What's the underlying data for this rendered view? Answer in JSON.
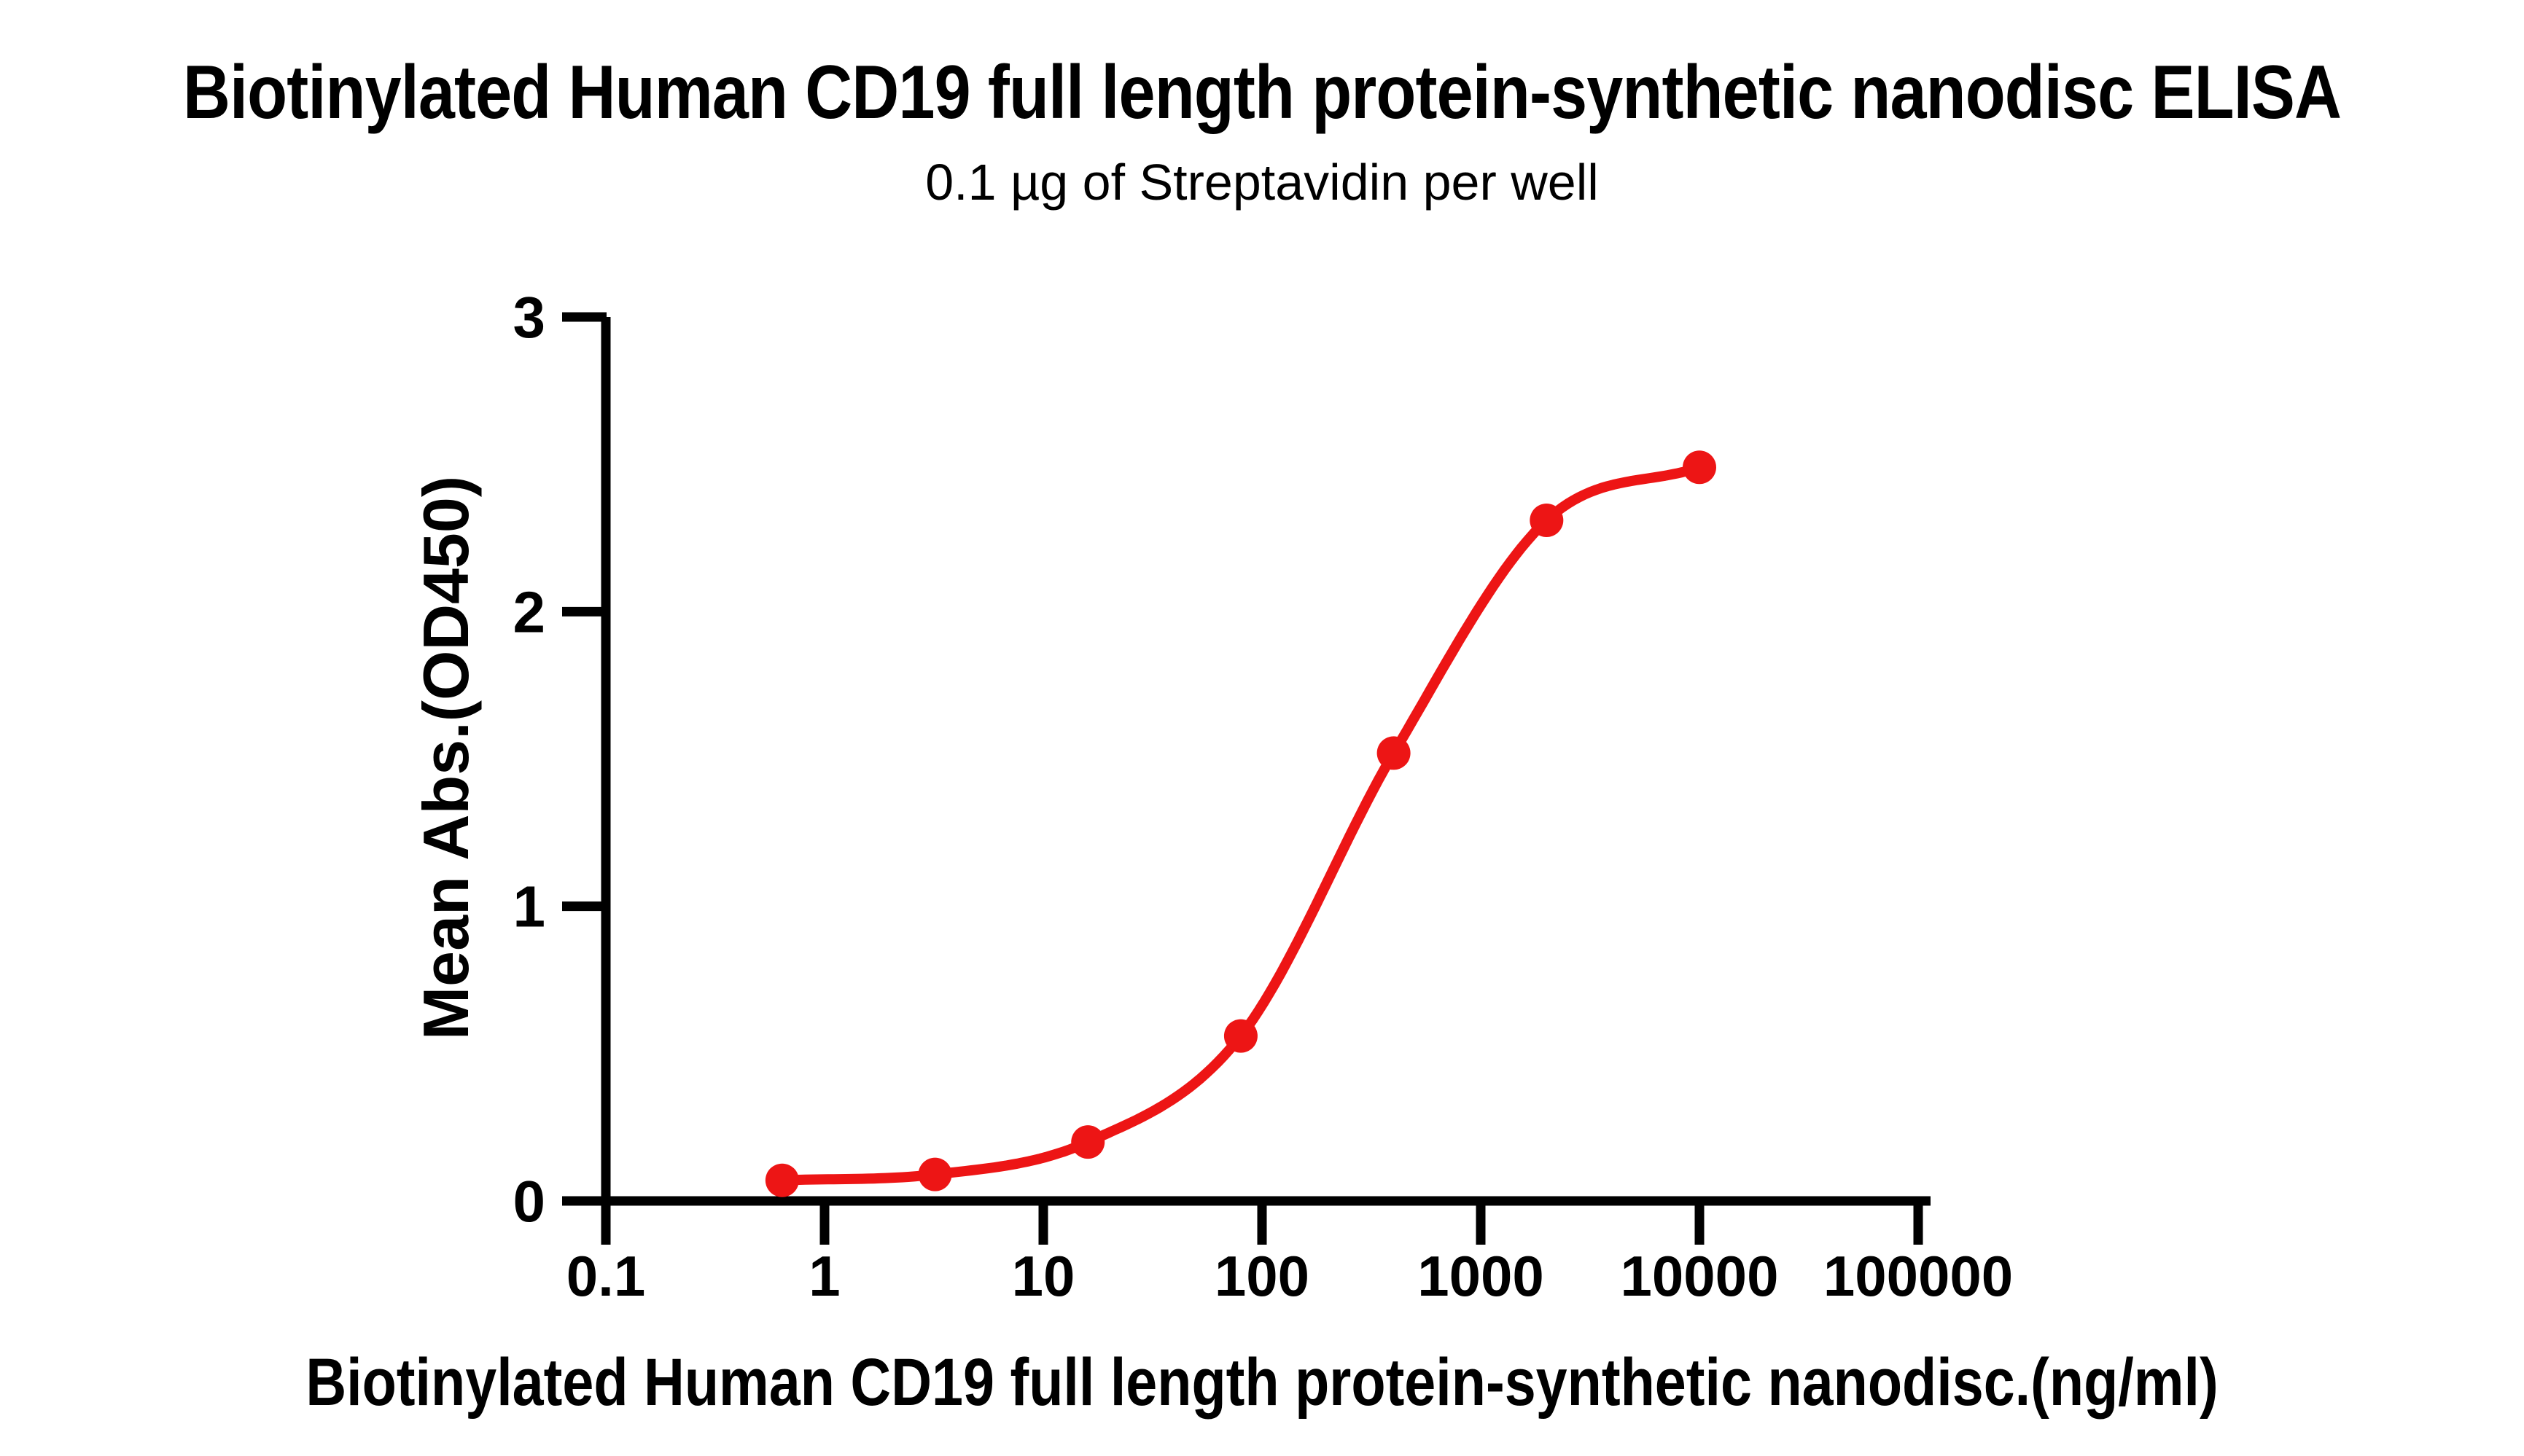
{
  "page": {
    "background": "#FFFFFF",
    "text_color": "#000000"
  },
  "header": {
    "title": "Biotinylated Human CD19 full length protein-synthetic nanodisc ELISA",
    "subtitle": "0.1 µg of Streptavidin per well"
  },
  "chart_data": {
    "type": "line",
    "title": "Biotinylated Human CD19 full length protein-synthetic nanodisc ELISA",
    "subtitle": "0.1 µg of Streptavidin per well",
    "xlabel": "Biotinylated Human CD19 full length protein-synthetic nanodisc.(ng/ml)",
    "ylabel": "Mean Abs.(OD450)",
    "x_scale": "log10",
    "xlim": [
      0.1,
      100000
    ],
    "ylim": [
      0,
      3
    ],
    "x_ticks": [
      0.1,
      1,
      10,
      100,
      1000,
      10000,
      100000
    ],
    "x_tick_labels": [
      "0.1",
      "1",
      "10",
      "100",
      "1000",
      "10000",
      "100000"
    ],
    "y_ticks": [
      0,
      1,
      2,
      3
    ],
    "y_tick_labels": [
      "0",
      "1",
      "2",
      "3"
    ],
    "grid": "off",
    "legend": "none",
    "colors": {
      "series": "#ED1515",
      "axis": "#000000"
    },
    "series": [
      {
        "name": "Biotinylated Human CD19 full length protein-synthetic nanodisc",
        "marker": "circle",
        "line": "sigmoidal-fit",
        "x": [
          0.64,
          3.2,
          16,
          80,
          400,
          2000,
          10000
        ],
        "y": [
          0.07,
          0.09,
          0.2,
          0.56,
          1.52,
          2.31,
          2.49
        ]
      }
    ]
  }
}
